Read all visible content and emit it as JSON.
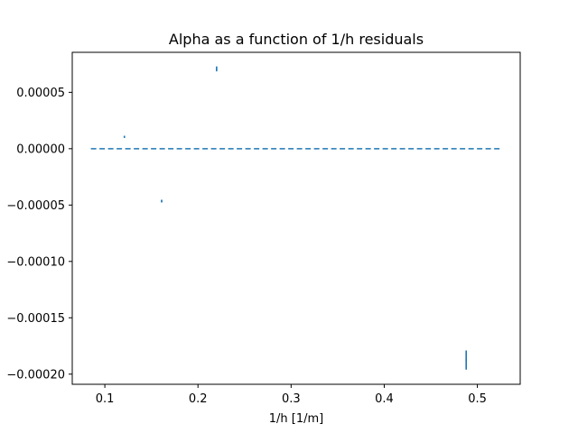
{
  "chart_data": {
    "type": "scatter",
    "title": "Alpha as a function of 1/h residuals",
    "xlabel": "1/h [1/m]",
    "ylabel": "",
    "xlim": [
      0.065,
      0.546
    ],
    "ylim": [
      -0.000209,
      8.55e-05
    ],
    "xticks": [
      0.1,
      0.2,
      0.3,
      0.4,
      0.5
    ],
    "xtick_labels": [
      "0.1",
      "0.2",
      "0.3",
      "0.4",
      "0.5"
    ],
    "yticks": [
      -0.0002,
      -0.00015,
      -0.0001,
      -5e-05,
      0.0,
      5e-05
    ],
    "ytick_labels": [
      "−0.00020",
      "−0.00015",
      "−0.00010",
      "−0.00005",
      "0.00000",
      "0.00005"
    ],
    "grid": false,
    "series_color": "#1f77b4",
    "points": [
      {
        "x": 0.121,
        "y": 1.05e-05,
        "yerr": 8e-07
      },
      {
        "x": 0.161,
        "y": -4.65e-05,
        "yerr": 1.2e-06
      },
      {
        "x": 0.22,
        "y": 7.08e-05,
        "yerr": 2.2e-06
      },
      {
        "x": 0.488,
        "y": -0.0001875,
        "yerr": 8.5e-06
      }
    ],
    "reference_line": {
      "y": 0.0,
      "x_start": 0.085,
      "x_end": 0.524,
      "style": "dashed"
    }
  }
}
